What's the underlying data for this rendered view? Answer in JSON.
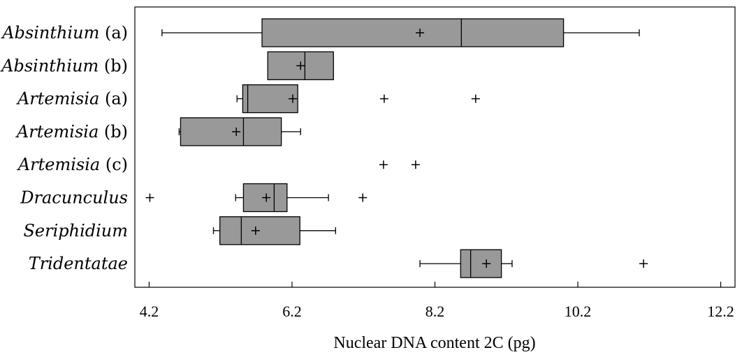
{
  "chart_data": {
    "type": "boxplot",
    "orientation": "horizontal",
    "xlabel": "Nuclear DNA content 2C (pg)",
    "ylabel": "",
    "xlim": [
      4.0,
      12.4
    ],
    "x_ticks": [
      4.2,
      6.2,
      8.2,
      10.2,
      12.2
    ],
    "x_tick_labels": [
      "4.2",
      "6.2",
      "8.2",
      "10.2",
      "12.2"
    ],
    "grid": false,
    "box_color": "#999999",
    "categories": [
      {
        "genus": "Absinthium",
        "suffix": " (a)"
      },
      {
        "genus": "Absinthium",
        "suffix": " (b)"
      },
      {
        "genus": "Artemisia",
        "suffix": " (a)"
      },
      {
        "genus": "Artemisia",
        "suffix": " (b)"
      },
      {
        "genus": "Artemisia",
        "suffix": " (c)"
      },
      {
        "genus": "Dracunculus",
        "suffix": ""
      },
      {
        "genus": "Seriphidium",
        "suffix": ""
      },
      {
        "genus": "Tridentatae",
        "suffix": ""
      }
    ],
    "series": [
      {
        "whisker_low": 4.38,
        "q1": 5.78,
        "median": 8.57,
        "q3": 10.0,
        "whisker_high": 11.06,
        "mean": 7.99,
        "outliers": []
      },
      {
        "whisker_low": null,
        "q1": 5.86,
        "median": 6.38,
        "q3": 6.78,
        "whisker_high": null,
        "mean": 6.32,
        "outliers": []
      },
      {
        "whisker_low": 5.43,
        "q1": 5.51,
        "median": 5.58,
        "q3": 6.28,
        "whisker_high": null,
        "mean": 6.21,
        "outliers": [
          7.49,
          8.77
        ]
      },
      {
        "whisker_low": 4.62,
        "q1": 4.64,
        "median": 5.52,
        "q3": 6.05,
        "whisker_high": 6.32,
        "mean": 5.42,
        "outliers": []
      },
      {
        "whisker_low": null,
        "q1": null,
        "median": null,
        "q3": null,
        "whisker_high": null,
        "mean": null,
        "outliers": [
          7.48,
          7.93
        ]
      },
      {
        "whisker_low": 5.41,
        "q1": 5.52,
        "median": 5.95,
        "q3": 6.13,
        "whisker_high": 6.71,
        "mean": 5.84,
        "outliers": [
          4.21,
          7.19
        ]
      },
      {
        "whisker_low": 5.1,
        "q1": 5.19,
        "median": 5.49,
        "q3": 6.31,
        "whisker_high": 6.81,
        "mean": 5.69,
        "outliers": []
      },
      {
        "whisker_low": 7.99,
        "q1": 8.56,
        "median": 8.7,
        "q3": 9.13,
        "whisker_high": 9.28,
        "mean": 8.92,
        "outliers": [
          11.12
        ]
      }
    ]
  }
}
